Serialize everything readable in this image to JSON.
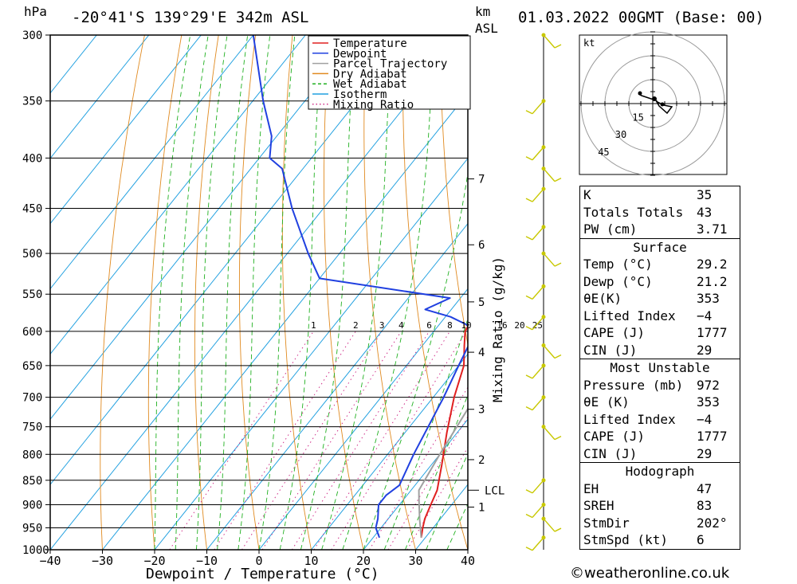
{
  "header": {
    "location": "-20°41'S  139°29'E  342m  ASL",
    "date": "01.03.2022  00GMT  (Base: 00)",
    "pressure_unit": "hPa",
    "km_label": "km",
    "asl_label": "ASL"
  },
  "chart_data": {
    "type": "line",
    "title": "",
    "xlabel": "Dewpoint / Temperature (°C)",
    "y2label": "Mixing Ratio (g/kg)",
    "ylabel": "hPa",
    "xlim": [
      -40,
      40
    ],
    "ylim": [
      1000,
      300
    ],
    "y_scale": "log",
    "x_ticks": [
      -40,
      -30,
      -20,
      -10,
      0,
      10,
      20,
      30,
      40
    ],
    "x_tick_labels": [
      "−40",
      "−30",
      "−20",
      "−10",
      "0",
      "10",
      "20",
      "30",
      "40"
    ],
    "pressure_levels": [
      300,
      350,
      400,
      450,
      500,
      550,
      600,
      650,
      700,
      750,
      800,
      850,
      900,
      950,
      1000
    ],
    "km_ticks": [
      {
        "label": "7",
        "p": 420
      },
      {
        "label": "6",
        "p": 490
      },
      {
        "label": "5",
        "p": 560
      },
      {
        "label": "4",
        "p": 630
      },
      {
        "label": "3",
        "p": 720
      },
      {
        "label": "2",
        "p": 810
      },
      {
        "label": "1",
        "p": 905
      }
    ],
    "lcl": {
      "label": "LCL",
      "p": 870
    },
    "mixing_ratio_labels": [
      "1",
      "2",
      "3",
      "4",
      "6",
      "8",
      "10",
      "16",
      "20",
      "25"
    ],
    "legend": [
      "Temperature",
      "Dewpoint",
      "Parcel Trajectory",
      "Dry Adiabat",
      "Wet Adiabat",
      "Isotherm",
      "Mixing Ratio"
    ],
    "legend_position": "top-right",
    "series": [
      {
        "name": "Temperature",
        "color": "#e02020",
        "points": [
          [
            29.2,
            972
          ],
          [
            28,
            950
          ],
          [
            27,
            930
          ],
          [
            26,
            900
          ],
          [
            25,
            870
          ],
          [
            22,
            820
          ],
          [
            18,
            760
          ],
          [
            14,
            700
          ],
          [
            11,
            650
          ],
          [
            8,
            620
          ],
          [
            6,
            600
          ],
          [
            5,
            570
          ],
          [
            5,
            555
          ],
          [
            4,
            545
          ],
          [
            3,
            520
          ],
          [
            0,
            480
          ],
          [
            -4,
            440
          ],
          [
            -8,
            400
          ],
          [
            -13,
            375
          ],
          [
            -19,
            350
          ],
          [
            -28,
            300
          ]
        ]
      },
      {
        "name": "Dewpoint",
        "color": "#2040e0",
        "points": [
          [
            21.2,
            972
          ],
          [
            19,
            950
          ],
          [
            18,
            930
          ],
          [
            16,
            900
          ],
          [
            16,
            880
          ],
          [
            17,
            860
          ],
          [
            15,
            800
          ],
          [
            12,
            700
          ],
          [
            10,
            650
          ],
          [
            8,
            600
          ],
          [
            5,
            590
          ],
          [
            1,
            580
          ],
          [
            -5,
            570
          ],
          [
            -2,
            555
          ],
          [
            -30,
            530
          ],
          [
            -36,
            500
          ],
          [
            -46,
            450
          ],
          [
            -54,
            410
          ],
          [
            -58,
            400
          ],
          [
            -61,
            380
          ],
          [
            -68,
            350
          ],
          [
            -80,
            300
          ]
        ]
      },
      {
        "name": "Parcel Trajectory",
        "color": "#a0a0a0",
        "points": [
          [
            29.2,
            972
          ],
          [
            26,
            930
          ],
          [
            23,
            890
          ],
          [
            21.5,
            870
          ],
          [
            20,
            800
          ],
          [
            18,
            700
          ],
          [
            15,
            600
          ],
          [
            12,
            530
          ],
          [
            9,
            480
          ],
          [
            3,
            420
          ],
          [
            -4,
            380
          ],
          [
            -12,
            340
          ],
          [
            -18,
            320
          ]
        ]
      }
    ]
  },
  "wind_profile": {
    "color": "#c8c800",
    "levels": [
      300,
      350,
      390,
      410,
      430,
      470,
      500,
      540,
      580,
      620,
      650,
      700,
      750,
      850,
      900,
      930,
      972
    ]
  },
  "hodograph": {
    "unit_label": "kt",
    "ring_labels": [
      "15",
      "30",
      "45"
    ]
  },
  "indices": {
    "k_label": "K",
    "k_value": "35",
    "tt_label": "Totals Totals",
    "tt_value": "43",
    "pw_label": "PW (cm)",
    "pw_value": "3.71"
  },
  "surface": {
    "title": "Surface",
    "temp_label": "Temp (°C)",
    "temp_value": "29.2",
    "dewp_label": "Dewp (°C)",
    "dewp_value": "21.2",
    "thetae_label": "θE(K)",
    "thetae_value": "353",
    "li_label": "Lifted Index",
    "li_value": "−4",
    "cape_label": "CAPE (J)",
    "cape_value": "1777",
    "cin_label": "CIN (J)",
    "cin_value": "29"
  },
  "most_unstable": {
    "title": "Most Unstable",
    "pressure_label": "Pressure (mb)",
    "pressure_value": "972",
    "thetae_label": "θE (K)",
    "thetae_value": "353",
    "li_label": "Lifted Index",
    "li_value": "−4",
    "cape_label": "CAPE (J)",
    "cape_value": "1777",
    "cin_label": "CIN (J)",
    "cin_value": "29"
  },
  "hodograph_params": {
    "title": "Hodograph",
    "eh_label": "EH",
    "eh_value": "47",
    "sreh_label": "SREH",
    "sreh_value": "83",
    "stmdir_label": "StmDir",
    "stmdir_value": "202°",
    "stmspd_label": "StmSpd (kt)",
    "stmspd_value": "6"
  },
  "footer": "©weatheronline.co.uk"
}
